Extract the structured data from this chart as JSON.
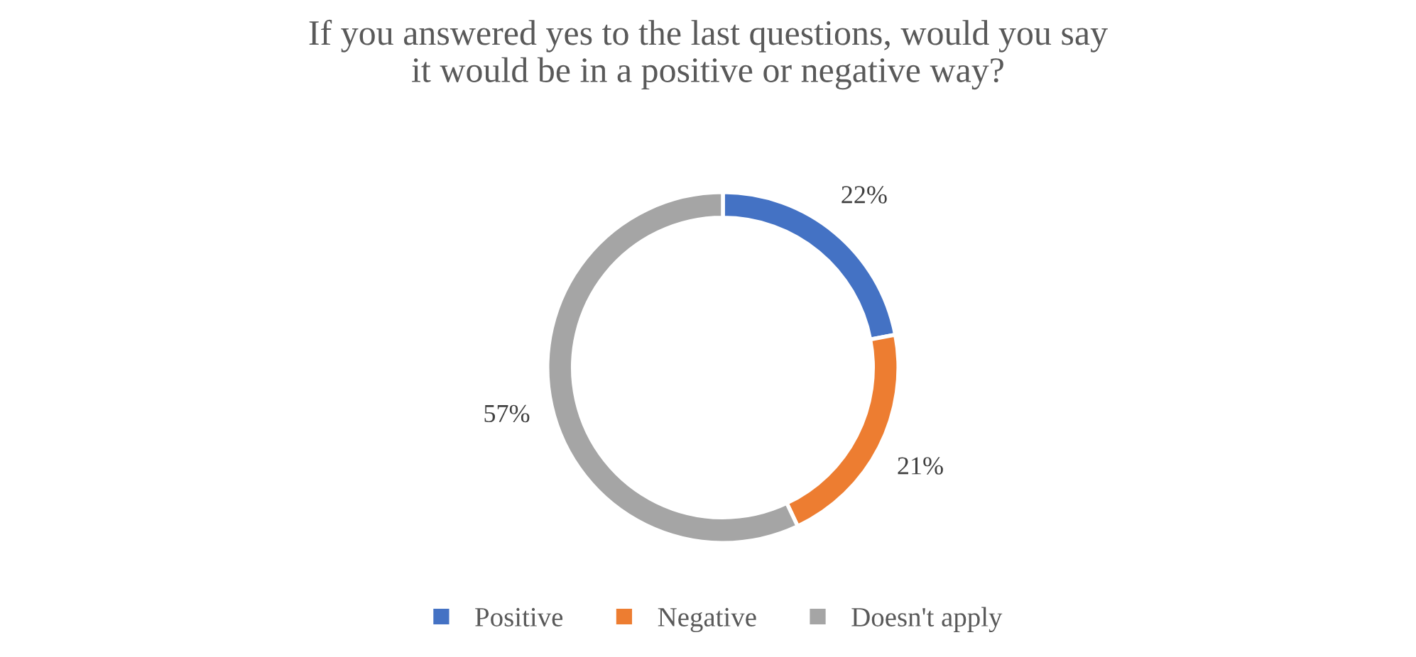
{
  "chart_data": {
    "type": "donut",
    "title": "If you answered yes to the last questions, would you say\nit would be in a positive or negative way?",
    "categories": [
      "Positive",
      "Negative",
      "Doesn't apply"
    ],
    "values": [
      22,
      21,
      57
    ],
    "colors": [
      "#4472c4",
      "#ed7d31",
      "#a5a5a5"
    ],
    "value_labels": [
      "22%",
      "21%",
      "57%"
    ],
    "legend": "bottom"
  }
}
